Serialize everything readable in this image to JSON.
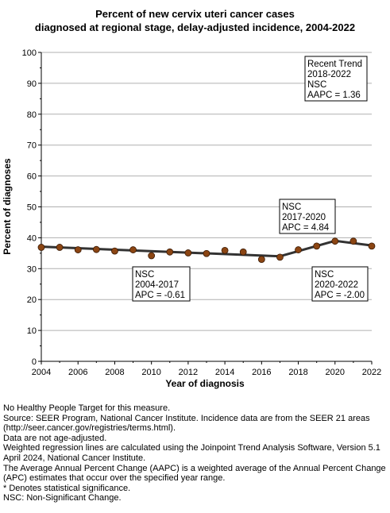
{
  "title": {
    "line1": "Percent of new cervix uteri cancer cases",
    "line2": "diagnosed at regional stage, delay-adjusted incidence, 2004-2022"
  },
  "chart_data": {
    "type": "line",
    "xlabel": "Year of diagnosis",
    "ylabel": "Percent of diagnoses",
    "xlim": [
      2004,
      2022
    ],
    "ylim": [
      0,
      100
    ],
    "xticks": [
      2004,
      2006,
      2008,
      2010,
      2012,
      2014,
      2016,
      2018,
      2020,
      2022
    ],
    "yticks": [
      0,
      10,
      20,
      30,
      40,
      50,
      60,
      70,
      80,
      90,
      100
    ],
    "grid": true,
    "observed": {
      "x": [
        2004,
        2005,
        2006,
        2007,
        2008,
        2009,
        2010,
        2011,
        2012,
        2013,
        2014,
        2015,
        2016,
        2017,
        2018,
        2019,
        2020,
        2021,
        2022
      ],
      "y": [
        36.9,
        36.9,
        36.1,
        36.2,
        35.7,
        36.1,
        34.2,
        35.4,
        35.1,
        34.9,
        35.9,
        35.4,
        33.0,
        33.7,
        36.1,
        37.3,
        38.9,
        38.9,
        37.3
      ],
      "color": "#8b4513"
    },
    "trend": {
      "x": [
        2004,
        2017,
        2020,
        2022
      ],
      "y": [
        37.1,
        34.0,
        39.0,
        37.5
      ],
      "color": "#333333"
    },
    "annotations": [
      {
        "lines": [
          "Recent Trend",
          "2018-2022",
          "NSC",
          "AAPC =  1.36"
        ]
      },
      {
        "lines": [
          "NSC",
          "2017-2020",
          "APC =  4.84"
        ]
      },
      {
        "lines": [
          "NSC",
          "2004-2017",
          "APC = -0.61"
        ]
      },
      {
        "lines": [
          "NSC",
          "2020-2022",
          "APC = -2.00"
        ]
      }
    ]
  },
  "notes": [
    "No Healthy People Target for this measure.",
    "Source: SEER Program, National Cancer Institute. Incidence data are from the SEER 21 areas (http://seer.cancer.gov/registries/terms.html).",
    "Data are not age-adjusted.",
    "Weighted regression lines are calculated using the Joinpoint Trend Analysis Software, Version 5.1 April 2024, National Cancer Institute.",
    "The Average Annual Percent Change (AAPC) is a weighted average of the Annual Percent Change (APC) estimates that occur over the specified year range.",
    "* Denotes statistical significance.",
    "NSC: Non-Significant Change."
  ]
}
